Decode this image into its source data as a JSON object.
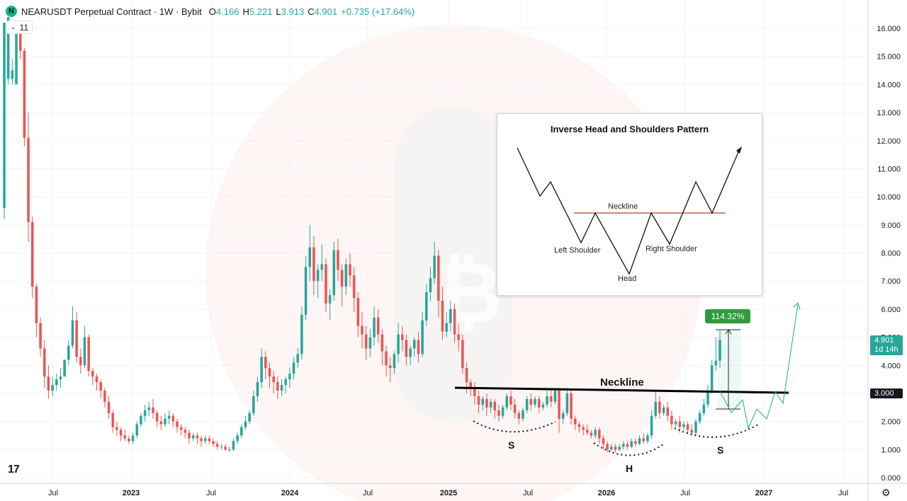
{
  "header": {
    "logo_letter": "N",
    "symbol_line": "NEARUSDT Perpetual Contract · 1W · Bybit",
    "open_key": "O",
    "open_val": "4.166",
    "high_key": "H",
    "high_val": "5.221",
    "low_key": "L",
    "low_val": "3.913",
    "close_key": "C",
    "close_val": "4.901",
    "change": "+0.735 (+17.64%)"
  },
  "indicator_toggle": {
    "count": "11"
  },
  "price_axis": {
    "labels": [
      "16.000",
      "15.000",
      "14.000",
      "13.000",
      "12.000",
      "11.000",
      "10.000",
      "9.000",
      "8.000",
      "7.000",
      "6.000",
      "5.000",
      "4.000",
      "3.000",
      "2.000",
      "1.000",
      "0.000"
    ],
    "last_price": "4.901",
    "countdown": "1d 14h",
    "neckline_price": "3.000"
  },
  "time_axis": {
    "labels": [
      "Jul",
      "2023",
      "Jul",
      "2024",
      "Jul",
      "2025",
      "Jul",
      "2026",
      "Jul",
      "2027",
      "Jul"
    ]
  },
  "annotations": {
    "neckline_label": "Neckline",
    "s_left": "S",
    "h_label": "H",
    "s_right": "S",
    "measure_badge": "114.32%"
  },
  "inset": {
    "title": "Inverse Head and Shoulders Pattern",
    "neckline": "Neckline",
    "left_shoulder": "Left Shoulder",
    "right_shoulder": "Right Shoulder",
    "head": "Head"
  },
  "colors": {
    "up": "#26a69a",
    "down": "#ef5350",
    "badge": "#2e9b3c",
    "neckline": "#000000",
    "inset_neckline": "#c0392b"
  },
  "chart_data": {
    "type": "candlestick",
    "title": "NEARUSDT Perpetual Contract · 1W · Bybit",
    "ylim": [
      0,
      16.5
    ],
    "y_scale": "linear",
    "grid": true,
    "series": [
      {
        "values": [
          [
            9.6,
            9.6,
            16.2,
            9.2
          ],
          [
            14.2,
            14.2,
            16.4,
            14.0
          ],
          [
            14.2,
            14.9,
            14.5,
            14.0
          ],
          [
            14.0,
            16.0,
            15.9,
            14.7
          ],
          [
            15.9,
            16.2,
            15.2,
            14.9
          ],
          [
            15.2,
            15.3,
            12.1,
            11.8
          ],
          [
            12.1,
            13.0,
            9.1,
            8.4
          ],
          [
            9.1,
            9.3,
            6.8,
            6.4
          ],
          [
            6.8,
            6.9,
            5.5,
            5.0
          ],
          [
            5.5,
            5.7,
            4.6,
            4.3
          ],
          [
            4.6,
            4.9,
            3.6,
            3.2
          ],
          [
            3.6,
            4.0,
            3.1,
            2.8
          ],
          [
            3.1,
            3.6,
            3.3,
            2.9
          ],
          [
            3.3,
            3.7,
            3.5,
            3.1
          ],
          [
            3.5,
            3.9,
            3.6,
            3.2
          ],
          [
            3.6,
            4.1,
            4.2,
            3.6
          ],
          [
            4.2,
            4.9,
            4.7,
            4.0
          ],
          [
            4.7,
            6.1,
            5.6,
            4.6
          ],
          [
            5.6,
            5.9,
            4.3,
            4.1
          ],
          [
            4.3,
            4.6,
            4.0,
            3.7
          ],
          [
            4.0,
            5.4,
            5.0,
            3.9
          ],
          [
            5.0,
            5.1,
            3.8,
            3.6
          ],
          [
            3.8,
            3.9,
            3.6,
            3.3
          ],
          [
            3.6,
            3.7,
            3.4,
            3.1
          ],
          [
            3.4,
            3.5,
            3.1,
            2.8
          ],
          [
            3.1,
            3.2,
            2.7,
            2.5
          ],
          [
            2.7,
            2.9,
            2.3,
            2.1
          ],
          [
            2.3,
            2.4,
            1.8,
            1.6
          ],
          [
            1.8,
            2.0,
            1.7,
            1.5
          ],
          [
            1.7,
            1.8,
            1.5,
            1.3
          ],
          [
            1.5,
            1.7,
            1.4,
            1.3
          ],
          [
            1.4,
            1.5,
            1.3,
            1.2
          ],
          [
            1.3,
            1.6,
            1.5,
            1.2
          ],
          [
            1.5,
            2.0,
            1.9,
            1.4
          ],
          [
            1.9,
            2.3,
            2.2,
            1.8
          ],
          [
            2.2,
            2.6,
            2.4,
            2.0
          ],
          [
            2.4,
            2.7,
            2.5,
            2.2
          ],
          [
            2.5,
            2.8,
            2.3,
            2.1
          ],
          [
            2.3,
            2.4,
            2.0,
            1.8
          ],
          [
            2.0,
            2.2,
            1.9,
            1.7
          ],
          [
            1.9,
            2.3,
            2.1,
            1.8
          ],
          [
            2.1,
            2.4,
            2.2,
            1.9
          ],
          [
            2.2,
            2.3,
            2.0,
            1.8
          ],
          [
            2.0,
            2.1,
            1.8,
            1.6
          ],
          [
            1.8,
            1.9,
            1.7,
            1.5
          ],
          [
            1.7,
            1.8,
            1.6,
            1.4
          ],
          [
            1.6,
            1.7,
            1.4,
            1.2
          ],
          [
            1.4,
            1.6,
            1.5,
            1.3
          ],
          [
            1.5,
            1.6,
            1.4,
            1.2
          ],
          [
            1.4,
            1.5,
            1.3,
            1.1
          ],
          [
            1.3,
            1.5,
            1.4,
            1.2
          ],
          [
            1.4,
            1.5,
            1.3,
            1.2
          ],
          [
            1.3,
            1.4,
            1.2,
            1.1
          ],
          [
            1.2,
            1.3,
            1.1,
            1.0
          ],
          [
            1.1,
            1.2,
            1.1,
            1.0
          ],
          [
            1.1,
            1.2,
            1.0,
            0.95
          ],
          [
            1.0,
            1.1,
            1.0,
            0.9
          ],
          [
            1.0,
            1.4,
            1.3,
            0.95
          ],
          [
            1.3,
            1.6,
            1.5,
            1.2
          ],
          [
            1.5,
            1.9,
            1.8,
            1.4
          ],
          [
            1.8,
            2.2,
            2.0,
            1.7
          ],
          [
            2.0,
            2.4,
            2.3,
            1.9
          ],
          [
            2.3,
            3.1,
            2.9,
            2.2
          ],
          [
            2.9,
            3.6,
            3.4,
            2.7
          ],
          [
            3.4,
            4.6,
            4.3,
            3.2
          ],
          [
            4.3,
            4.5,
            3.9,
            3.5
          ],
          [
            3.9,
            4.1,
            3.6,
            3.2
          ],
          [
            3.6,
            3.8,
            3.4,
            3.0
          ],
          [
            3.4,
            3.6,
            3.1,
            2.8
          ],
          [
            3.1,
            3.5,
            3.3,
            2.9
          ],
          [
            3.3,
            3.6,
            3.5,
            3.0
          ],
          [
            3.5,
            3.9,
            3.7,
            3.2
          ],
          [
            3.7,
            4.3,
            4.1,
            3.5
          ],
          [
            4.1,
            4.6,
            4.4,
            3.9
          ],
          [
            4.4,
            6.1,
            5.8,
            4.2
          ],
          [
            5.8,
            7.9,
            7.5,
            5.6
          ],
          [
            7.5,
            9.0,
            8.2,
            7.0
          ],
          [
            8.2,
            8.6,
            7.0,
            6.5
          ],
          [
            7.0,
            7.6,
            7.4,
            6.4
          ],
          [
            7.4,
            8.3,
            7.6,
            7.0
          ],
          [
            7.6,
            7.8,
            6.2,
            5.9
          ],
          [
            6.2,
            6.7,
            6.5,
            5.6
          ],
          [
            6.5,
            8.4,
            8.1,
            6.3
          ],
          [
            8.1,
            8.5,
            7.4,
            7.0
          ],
          [
            7.4,
            7.6,
            6.8,
            6.1
          ],
          [
            6.8,
            7.8,
            7.6,
            6.5
          ],
          [
            7.6,
            8.0,
            7.2,
            6.8
          ],
          [
            7.2,
            7.5,
            6.4,
            5.9
          ],
          [
            6.4,
            6.6,
            5.4,
            5.0
          ],
          [
            5.4,
            5.9,
            5.1,
            4.6
          ],
          [
            5.1,
            5.4,
            4.6,
            4.2
          ],
          [
            4.6,
            5.3,
            5.0,
            4.3
          ],
          [
            5.0,
            6.1,
            5.7,
            4.7
          ],
          [
            5.7,
            6.0,
            5.1,
            4.8
          ],
          [
            5.1,
            5.3,
            4.5,
            4.0
          ],
          [
            4.5,
            4.7,
            4.0,
            3.6
          ],
          [
            4.0,
            4.3,
            3.9,
            3.4
          ],
          [
            3.9,
            4.5,
            4.4,
            3.7
          ],
          [
            4.4,
            5.5,
            5.1,
            4.1
          ],
          [
            5.1,
            5.4,
            4.9,
            4.5
          ],
          [
            4.9,
            5.1,
            4.3,
            4.0
          ],
          [
            4.3,
            4.7,
            4.6,
            4.0
          ],
          [
            4.6,
            5.0,
            4.9,
            4.3
          ],
          [
            4.9,
            5.2,
            4.4,
            4.1
          ],
          [
            4.4,
            5.9,
            5.6,
            4.3
          ],
          [
            5.6,
            6.9,
            6.6,
            5.4
          ],
          [
            6.6,
            7.5,
            7.1,
            6.3
          ],
          [
            7.1,
            8.4,
            7.9,
            6.9
          ],
          [
            7.9,
            8.1,
            6.3,
            5.7
          ],
          [
            6.3,
            6.8,
            5.2,
            4.9
          ],
          [
            5.2,
            5.9,
            5.5,
            5.0
          ],
          [
            5.5,
            6.3,
            6.0,
            5.2
          ],
          [
            6.0,
            6.2,
            5.1,
            4.8
          ],
          [
            5.1,
            5.5,
            4.9,
            4.5
          ],
          [
            4.9,
            5.1,
            3.9,
            3.7
          ],
          [
            3.9,
            4.1,
            3.4,
            3.0
          ],
          [
            3.4,
            3.5,
            3.2,
            2.9
          ],
          [
            3.2,
            3.4,
            2.9,
            2.6
          ],
          [
            2.9,
            3.1,
            2.6,
            2.3
          ],
          [
            2.6,
            2.9,
            2.8,
            2.4
          ],
          [
            2.8,
            3.0,
            2.5,
            2.2
          ],
          [
            2.5,
            2.8,
            2.7,
            2.3
          ],
          [
            2.7,
            2.8,
            2.4,
            2.1
          ],
          [
            2.4,
            2.6,
            2.2,
            2.0
          ],
          [
            2.2,
            2.6,
            2.5,
            2.1
          ],
          [
            2.5,
            3.0,
            2.9,
            2.4
          ],
          [
            2.9,
            3.1,
            2.6,
            2.4
          ],
          [
            2.6,
            2.8,
            2.3,
            2.1
          ],
          [
            2.3,
            2.4,
            2.1,
            1.9
          ],
          [
            2.1,
            2.5,
            2.4,
            2.0
          ],
          [
            2.4,
            2.9,
            2.8,
            2.3
          ],
          [
            2.8,
            3.0,
            2.6,
            2.4
          ],
          [
            2.6,
            2.9,
            2.8,
            2.5
          ],
          [
            2.8,
            2.9,
            2.5,
            2.3
          ],
          [
            2.5,
            2.7,
            2.6,
            2.4
          ],
          [
            2.6,
            3.1,
            2.9,
            2.5
          ],
          [
            2.9,
            3.2,
            2.7,
            2.5
          ],
          [
            2.7,
            3.2,
            3.1,
            2.6
          ],
          [
            3.1,
            3.2,
            2.1,
            1.6
          ],
          [
            2.1,
            2.4,
            2.3,
            1.9
          ],
          [
            2.3,
            3.2,
            3.0,
            2.2
          ],
          [
            3.0,
            3.1,
            2.1,
            1.9
          ],
          [
            2.1,
            2.2,
            1.9,
            1.7
          ],
          [
            1.9,
            2.0,
            1.8,
            1.6
          ],
          [
            1.8,
            1.9,
            1.7,
            1.5
          ],
          [
            1.7,
            1.9,
            1.6,
            1.5
          ],
          [
            1.6,
            1.7,
            1.5,
            1.4
          ],
          [
            1.5,
            1.8,
            1.7,
            1.4
          ],
          [
            1.7,
            1.8,
            1.4,
            1.2
          ],
          [
            1.4,
            1.5,
            1.2,
            1.0
          ],
          [
            1.2,
            1.3,
            1.0,
            0.9
          ],
          [
            1.0,
            1.2,
            1.1,
            0.95
          ],
          [
            1.1,
            1.2,
            1.0,
            0.9
          ],
          [
            1.0,
            1.2,
            1.1,
            0.95
          ],
          [
            1.1,
            1.3,
            1.2,
            1.0
          ],
          [
            1.2,
            1.3,
            1.1,
            1.0
          ],
          [
            1.1,
            1.4,
            1.3,
            1.05
          ],
          [
            1.3,
            1.4,
            1.2,
            1.1
          ],
          [
            1.2,
            1.5,
            1.4,
            1.15
          ],
          [
            1.4,
            1.6,
            1.3,
            1.2
          ],
          [
            1.3,
            1.6,
            1.5,
            1.2
          ],
          [
            1.5,
            2.4,
            2.2,
            1.4
          ],
          [
            2.2,
            3.1,
            2.7,
            2.1
          ],
          [
            2.7,
            2.9,
            2.3,
            2.1
          ],
          [
            2.3,
            2.6,
            2.5,
            2.2
          ],
          [
            2.5,
            2.7,
            2.2,
            2.0
          ],
          [
            2.2,
            2.4,
            1.9,
            1.7
          ],
          [
            1.9,
            2.1,
            2.0,
            1.8
          ],
          [
            2.0,
            2.2,
            1.8,
            1.6
          ],
          [
            1.8,
            2.0,
            1.9,
            1.7
          ],
          [
            1.9,
            2.0,
            1.7,
            1.6
          ],
          [
            1.7,
            1.9,
            1.6,
            1.5
          ],
          [
            1.6,
            2.1,
            2.0,
            1.5
          ],
          [
            2.0,
            2.4,
            2.3,
            1.9
          ],
          [
            2.3,
            2.8,
            2.6,
            2.2
          ],
          [
            2.6,
            3.3,
            3.1,
            2.5
          ],
          [
            3.1,
            4.2,
            4.0,
            3.0
          ],
          [
            4.0,
            5.0,
            4.166,
            3.8
          ],
          [
            4.166,
            5.221,
            4.901,
            3.913
          ]
        ]
      }
    ],
    "neckline_level": 3.0,
    "measured_move": "114.32%"
  }
}
